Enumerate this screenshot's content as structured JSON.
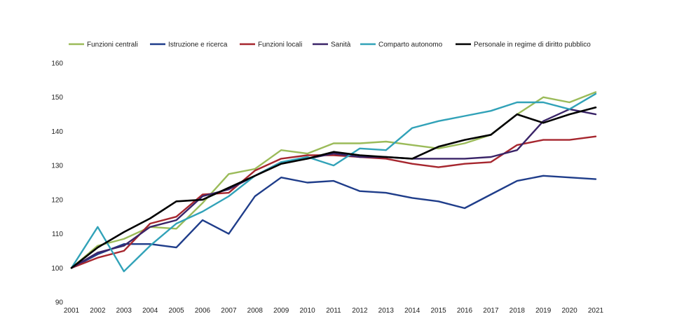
{
  "chart_data": {
    "type": "line",
    "title": "",
    "xlabel": "",
    "ylabel": "",
    "ylim": [
      90,
      160
    ],
    "yticks": [
      90,
      100,
      110,
      120,
      130,
      140,
      150,
      160
    ],
    "grid": false,
    "legend_position": "top",
    "x": [
      "2001",
      "2002",
      "2003",
      "2004",
      "2005",
      "2006",
      "2007",
      "2008",
      "2009",
      "2010",
      "2011",
      "2012",
      "2013",
      "2014",
      "2015",
      "2016",
      "2017",
      "2018",
      "2019",
      "2020",
      "2021"
    ],
    "series": [
      {
        "name": "Funzioni centrali",
        "color": "#9bbb59",
        "values": [
          100,
          106.5,
          108.5,
          112,
          111.5,
          119,
          127.5,
          129,
          134.5,
          133.5,
          136.5,
          136.5,
          137,
          136,
          135,
          136.5,
          139,
          145,
          150,
          148.5,
          151.5
        ]
      },
      {
        "name": "Istruzione e ricerca",
        "color": "#1f3d8a",
        "values": [
          100,
          104,
          107,
          107,
          106,
          114,
          110,
          121,
          126.5,
          125,
          125.5,
          122.5,
          122,
          120.5,
          119.5,
          117.5,
          121.5,
          125.5,
          127,
          126.5,
          126
        ]
      },
      {
        "name": "Funzioni locali",
        "color": "#a6262e",
        "values": [
          100,
          103,
          105,
          113,
          115,
          121.5,
          122,
          128.5,
          132,
          133,
          133,
          132.5,
          132,
          130.5,
          129.5,
          130.5,
          131,
          136,
          137.5,
          137.5,
          138.5
        ]
      },
      {
        "name": "Sanità",
        "color": "#3a2468",
        "values": [
          100,
          104.5,
          106.5,
          112,
          114,
          121,
          123,
          127,
          131,
          132,
          133.5,
          132.5,
          132.5,
          132,
          132,
          132,
          132.5,
          134.5,
          143,
          146.5,
          145
        ]
      },
      {
        "name": "Comparto autonomo",
        "color": "#31a2b8",
        "values": [
          100,
          112,
          99,
          106.5,
          113,
          116.5,
          121,
          127,
          131,
          132.5,
          130,
          135,
          134.5,
          141,
          143,
          144.5,
          146,
          148.5,
          148.5,
          146.5,
          151
        ]
      },
      {
        "name": "Personale in regime di diritto pubblico",
        "color": "#000000",
        "values": [
          100,
          106,
          110.5,
          114.5,
          119.5,
          120,
          123.5,
          127,
          130.5,
          132,
          134,
          133,
          132.5,
          132,
          135.5,
          137.5,
          139,
          145,
          142.5,
          145,
          147
        ]
      }
    ]
  }
}
